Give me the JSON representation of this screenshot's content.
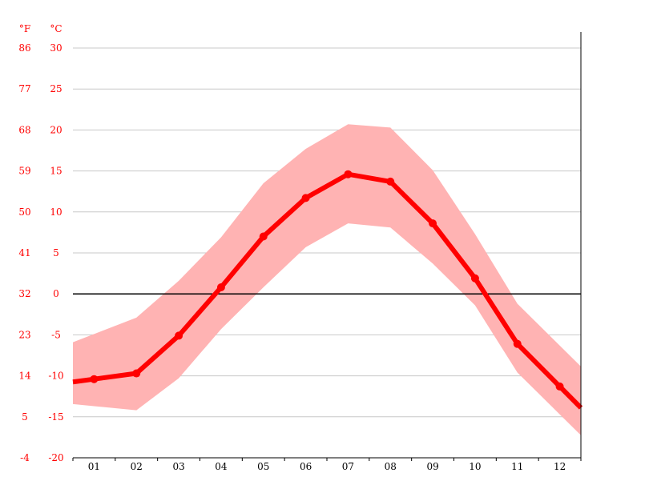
{
  "chart_data": {
    "type": "line",
    "categories": [
      "01",
      "02",
      "03",
      "04",
      "05",
      "06",
      "07",
      "08",
      "09",
      "10",
      "11",
      "12"
    ],
    "series": [
      {
        "values": [
          -10.4,
          -9.7,
          -5.1,
          0.8,
          7.0,
          11.7,
          14.6,
          13.7,
          8.6,
          1.9,
          -6.1,
          -11.3
        ],
        "color": "#ff0000"
      }
    ],
    "band": {
      "min": [
        -13.7,
        -14.2,
        -10.3,
        -4.3,
        0.8,
        5.7,
        8.6,
        8.1,
        3.7,
        -1.4,
        -9.6,
        -14.7
      ],
      "max": [
        -4.9,
        -2.9,
        1.6,
        6.9,
        13.5,
        17.7,
        20.7,
        20.3,
        15.1,
        7.3,
        -1.2,
        -6.3
      ],
      "color": "#ffb3b3"
    },
    "ylim": [
      -20,
      30
    ],
    "y_ticks_c": [
      "30",
      "25",
      "20",
      "15",
      "10",
      "5",
      "0",
      "-5",
      "-10",
      "-15",
      "-20"
    ],
    "y_ticks_f": [
      "86",
      "77",
      "68",
      "59",
      "50",
      "41",
      "32",
      "23",
      "14",
      "5",
      "-4"
    ],
    "unit_f": "°F",
    "unit_c": "°C",
    "grid": true,
    "zero_line": true
  }
}
